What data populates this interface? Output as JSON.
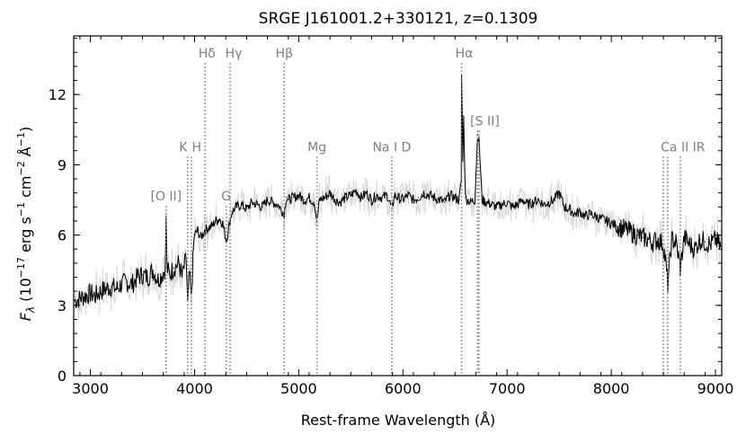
{
  "chart_data": {
    "type": "line",
    "title": "SRGE J161001.2+330121, z=0.1309",
    "xlabel": "Rest-frame Wavelength (Å)",
    "ylabel": "F_λ (10⁻¹⁷ erg s⁻¹ cm⁻² Å⁻¹)",
    "ylabel_parts": {
      "main": "F",
      "sub": "λ",
      "pre": " (10",
      "exp1": "−17",
      "mid": " erg s",
      "exp2": "−1",
      "mid2": " cm",
      "exp3": "−2",
      "mid3": " Å",
      "exp4": "−1",
      "post": ")"
    },
    "xlim": [
      2840,
      9060
    ],
    "ylim": [
      0,
      14.5
    ],
    "xticks": [
      3000,
      4000,
      5000,
      6000,
      7000,
      8000,
      9000
    ],
    "yticks": [
      0,
      3,
      6,
      9,
      12
    ],
    "grid": false,
    "series": [
      {
        "color": "#000000",
        "error_color": "#d9d9d9",
        "x": [
          2850,
          2900,
          2950,
          3000,
          3050,
          3100,
          3150,
          3200,
          3250,
          3300,
          3350,
          3400,
          3450,
          3500,
          3550,
          3600,
          3650,
          3700,
          3720,
          3727,
          3735,
          3760,
          3800,
          3850,
          3880,
          3900,
          3920,
          3934,
          3950,
          3968,
          3990,
          4000,
          4030,
          4060,
          4100,
          4130,
          4170,
          4200,
          4240,
          4270,
          4304,
          4320,
          4340,
          4360,
          4400,
          4450,
          4500,
          4550,
          4600,
          4650,
          4700,
          4750,
          4800,
          4861,
          4880,
          4900,
          4950,
          5000,
          5050,
          5100,
          5150,
          5175,
          5200,
          5250,
          5300,
          5350,
          5400,
          5450,
          5500,
          5550,
          5600,
          5650,
          5700,
          5750,
          5800,
          5850,
          5893,
          5920,
          5950,
          6000,
          6050,
          6100,
          6150,
          6200,
          6250,
          6300,
          6350,
          6400,
          6450,
          6500,
          6540,
          6560,
          6563,
          6575,
          6583,
          6600,
          6620,
          6650,
          6690,
          6717,
          6731,
          6760,
          6800,
          6850,
          6900,
          6950,
          7000,
          7050,
          7100,
          7150,
          7200,
          7250,
          7300,
          7350,
          7400,
          7450,
          7500,
          7550,
          7600,
          7650,
          7700,
          7750,
          7800,
          7850,
          7900,
          7950,
          8000,
          8050,
          8100,
          8150,
          8200,
          8250,
          8300,
          8350,
          8400,
          8450,
          8498,
          8520,
          8542,
          8580,
          8620,
          8662,
          8700,
          8750,
          8800,
          8850,
          8900,
          8950,
          9000,
          9050
        ],
        "values": [
          3.2,
          3.3,
          3.4,
          3.5,
          3.4,
          3.6,
          3.7,
          3.8,
          3.7,
          3.9,
          4.0,
          3.9,
          4.2,
          4.3,
          4.2,
          4.5,
          4.1,
          4.4,
          4.6,
          6.8,
          4.6,
          4.3,
          4.6,
          4.8,
          4.2,
          4.6,
          5.0,
          3.0,
          4.4,
          3.2,
          5.4,
          6.0,
          6.2,
          5.9,
          6.2,
          6.3,
          6.4,
          6.6,
          6.7,
          6.5,
          5.8,
          6.1,
          6.6,
          7.0,
          7.2,
          7.3,
          7.1,
          7.4,
          7.3,
          7.2,
          7.5,
          7.4,
          7.3,
          6.9,
          7.6,
          7.5,
          7.6,
          7.7,
          7.5,
          7.6,
          7.4,
          6.6,
          7.5,
          7.6,
          7.8,
          7.5,
          7.4,
          7.6,
          7.7,
          7.9,
          7.6,
          7.8,
          7.5,
          7.7,
          7.6,
          7.7,
          7.1,
          7.7,
          7.6,
          7.5,
          7.7,
          7.5,
          7.6,
          7.8,
          7.7,
          7.6,
          7.5,
          7.4,
          7.7,
          7.6,
          7.5,
          8.3,
          12.8,
          9.3,
          11.0,
          7.6,
          7.5,
          7.4,
          7.5,
          10.3,
          10.0,
          7.5,
          7.4,
          7.3,
          7.2,
          7.3,
          7.4,
          7.2,
          7.3,
          7.5,
          7.3,
          7.4,
          7.5,
          7.3,
          7.4,
          7.5,
          7.8,
          7.2,
          7.1,
          6.9,
          7.0,
          6.8,
          6.9,
          6.8,
          6.7,
          6.6,
          6.5,
          6.4,
          6.3,
          6.2,
          6.1,
          6.0,
          5.9,
          5.8,
          5.7,
          5.8,
          5.6,
          4.9,
          3.9,
          5.8,
          5.7,
          4.6,
          5.9,
          5.6,
          5.4,
          5.8,
          5.7,
          5.6,
          5.8,
          5.5
        ]
      }
    ],
    "lines": [
      {
        "label": "[O II]",
        "x": 3727,
        "label_y": 7.4
      },
      {
        "label": "K",
        "x": 3934,
        "label_y": 9.5
      },
      {
        "label": "H",
        "x": 3968,
        "label_y": 9.5,
        "label_text": "H"
      },
      {
        "label": "Hδ",
        "x": 4102,
        "label_y": 13.5
      },
      {
        "label": "G",
        "x": 4304,
        "label_y": 7.4
      },
      {
        "label": "Hγ",
        "x": 4341,
        "label_y": 13.5
      },
      {
        "label": "Hβ",
        "x": 4861,
        "label_y": 13.5
      },
      {
        "label": "Mg",
        "x": 5175,
        "label_y": 9.5
      },
      {
        "label": "Na I D",
        "x": 5893,
        "label_y": 9.5
      },
      {
        "label": "Hα",
        "x": 6563,
        "label_y": 13.5
      },
      {
        "label": "[S II]",
        "x": 6717,
        "label_y": 10.6
      },
      {
        "label": "[S II]b",
        "x": 6731,
        "label_y": null
      },
      {
        "label": "Ca II IR",
        "x": 8498,
        "label_y": 9.5
      },
      {
        "label": "Ca II IR b",
        "x": 8542,
        "label_y": null
      },
      {
        "label": "Ca II IR c",
        "x": 8662,
        "label_y": null
      }
    ]
  }
}
